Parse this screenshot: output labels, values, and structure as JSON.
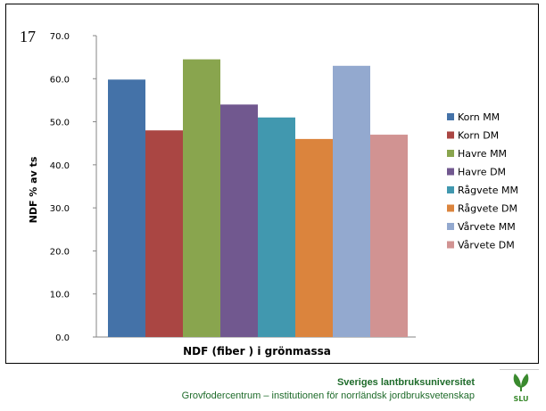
{
  "slide": {
    "number": "17"
  },
  "footer": {
    "institution": "Sveriges lantbruksuniversitet",
    "department": "Grovfodercentrum – institutionen för norrländsk jordbruksvetenskap",
    "logo_text": "SLU"
  },
  "colors": {
    "footer_text": "#1e6b2a",
    "logo_green": "#3a8a2e"
  },
  "chart_data": {
    "type": "bar",
    "title": "",
    "xlabel": "NDF (fiber ) i grönmassa",
    "ylabel": "NDF % av ts",
    "ylim": [
      0,
      70
    ],
    "yticks": [
      "0.0",
      "10.0",
      "20.0",
      "30.0",
      "40.0",
      "50.0",
      "60.0",
      "70.0"
    ],
    "grid": false,
    "legend_position": "right",
    "series": [
      {
        "name": "Korn MM",
        "values": [
          59.8
        ],
        "color": "#4472a8"
      },
      {
        "name": "Korn DM",
        "values": [
          48.0
        ],
        "color": "#aa4643"
      },
      {
        "name": "Havre MM",
        "values": [
          64.5
        ],
        "color": "#89a54e"
      },
      {
        "name": "Havre DM",
        "values": [
          54.0
        ],
        "color": "#71588f"
      },
      {
        "name": "Rågvete MM",
        "values": [
          51.0
        ],
        "color": "#4198af"
      },
      {
        "name": "Rågvete DM",
        "values": [
          46.0
        ],
        "color": "#db843d"
      },
      {
        "name": "Vårvete MM",
        "values": [
          63.0
        ],
        "color": "#93a9cf"
      },
      {
        "name": "Vårvete DM",
        "values": [
          47.0
        ],
        "color": "#d19392"
      }
    ]
  }
}
